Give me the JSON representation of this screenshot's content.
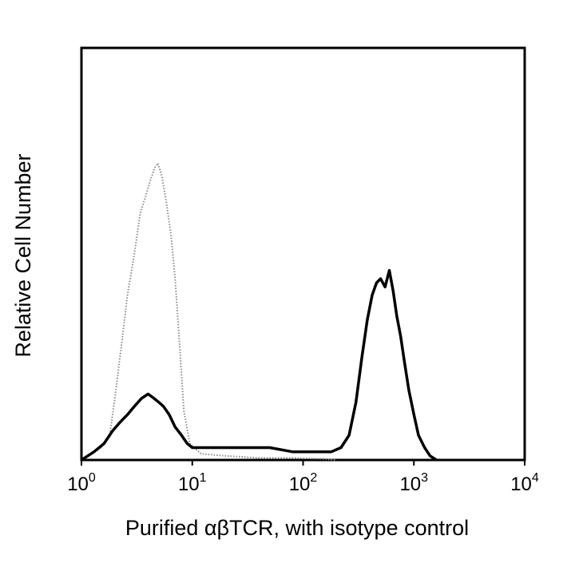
{
  "chart_data": {
    "type": "histogram",
    "title": "",
    "xlabel": "Purified αβTCR, with isotype control",
    "ylabel": "Relative Cell Number",
    "x_scale": "log",
    "xlim": [
      1,
      10000
    ],
    "ylim": [
      0,
      100
    ],
    "grid": false,
    "x_ticks": [
      {
        "value": 1,
        "base": "10",
        "exp": "0"
      },
      {
        "value": 10,
        "base": "10",
        "exp": "1"
      },
      {
        "value": 100,
        "base": "10",
        "exp": "2"
      },
      {
        "value": 1000,
        "base": "10",
        "exp": "3"
      },
      {
        "value": 10000,
        "base": "10",
        "exp": "4"
      }
    ],
    "series": [
      {
        "style": "dotted",
        "color": "#8a8a8a",
        "x": [
          1.0,
          1.5,
          1.8,
          2.0,
          2.3,
          2.6,
          3.0,
          3.4,
          3.8,
          4.2,
          4.6,
          4.9,
          5.3,
          5.8,
          6.4,
          7.0,
          7.6,
          8.4,
          9.5,
          12,
          20,
          40,
          80,
          150,
          200
        ],
        "y": [
          0,
          3,
          6,
          15,
          28,
          40,
          50,
          60,
          64,
          68,
          71,
          72,
          69,
          63,
          55,
          44,
          30,
          12,
          4,
          1.5,
          1,
          0.5,
          0.5,
          0.3,
          0
        ]
      },
      {
        "style": "solid",
        "color": "#000000",
        "x": [
          1.0,
          1.3,
          1.6,
          1.9,
          2.2,
          2.6,
          3.0,
          3.5,
          4.0,
          4.5,
          5.0,
          5.5,
          6.2,
          7.0,
          8.0,
          9.0,
          10,
          12,
          15,
          20,
          30,
          50,
          80,
          120,
          180,
          220,
          260,
          300,
          340,
          380,
          420,
          460,
          500,
          550,
          600,
          650,
          700,
          760,
          820,
          900,
          1000,
          1100,
          1250,
          1400,
          1600
        ],
        "y": [
          0,
          2,
          4,
          7,
          9,
          11,
          13,
          15,
          16,
          15,
          14,
          13,
          11,
          8,
          6,
          4,
          3,
          3,
          3,
          3,
          3,
          3,
          2,
          2,
          2,
          3,
          6,
          14,
          25,
          34,
          40,
          43,
          44,
          42,
          46,
          41,
          35,
          30,
          24,
          17,
          11,
          6,
          3,
          1,
          0
        ]
      }
    ]
  }
}
